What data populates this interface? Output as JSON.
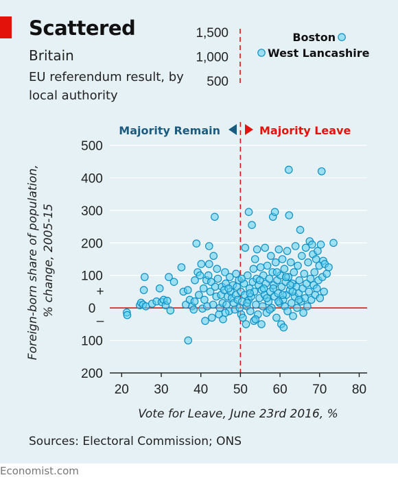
{
  "header": {
    "title": "Scattered",
    "subtitle": "Britain",
    "description": "EU referendum result, by local authority"
  },
  "footer": {
    "sources": "Sources: Electoral Commission; ONS",
    "brand": "Economist.com"
  },
  "colors": {
    "accent": "#e3120b",
    "remain": "#1c5b80",
    "leave": "#e3120b",
    "point_fill": "#5fcfee",
    "point_stroke": "#0e8fc4",
    "background": "#e6f1f6"
  },
  "chart_data": {
    "type": "scatter",
    "xlabel": "Vote for Leave, June 23rd 2016, %",
    "ylabel": "Foreign-born share of population, % change, 2005-15",
    "xlim": [
      17,
      82
    ],
    "ylim": [
      -200,
      500
    ],
    "x_ticks": [
      20,
      30,
      40,
      50,
      60,
      70,
      80
    ],
    "y_ticks": [
      {
        "value": 500,
        "label": "500"
      },
      {
        "value": 400,
        "label": "400"
      },
      {
        "value": 300,
        "label": "300"
      },
      {
        "value": 200,
        "label": "200"
      },
      {
        "value": 100,
        "label": "100"
      },
      {
        "value": 0,
        "label": "0"
      },
      {
        "value": -100,
        "label": "100"
      },
      {
        "value": -200,
        "label": "200"
      }
    ],
    "plus_sign": "+",
    "minus_sign": "–",
    "reference_line_x": 50,
    "remain_label": "Majority Remain",
    "leave_label": "Majority Leave",
    "inset": {
      "y_ticks": [
        {
          "value": 1500,
          "label": "1,500"
        },
        {
          "value": 1000,
          "label": "1,000"
        },
        {
          "value": 500,
          "label": "500"
        }
      ],
      "points": [
        {
          "name": "Boston",
          "x": 75.6,
          "y": 1412
        },
        {
          "name": "West Lancashire",
          "x": 55.3,
          "y": 1092
        }
      ]
    },
    "points": [
      [
        21.3,
        -14
      ],
      [
        21.4,
        -22
      ],
      [
        24.6,
        8
      ],
      [
        24.9,
        16
      ],
      [
        25.4,
        10
      ],
      [
        25.6,
        55
      ],
      [
        25.8,
        95
      ],
      [
        26.1,
        5
      ],
      [
        27.7,
        13
      ],
      [
        28.8,
        20
      ],
      [
        29.6,
        60
      ],
      [
        30.1,
        18
      ],
      [
        30.6,
        25
      ],
      [
        31.1,
        8
      ],
      [
        31.5,
        22
      ],
      [
        31.9,
        95
      ],
      [
        32.3,
        -8
      ],
      [
        33.2,
        80
      ],
      [
        35.1,
        125
      ],
      [
        35.6,
        50
      ],
      [
        36.2,
        10
      ],
      [
        36.7,
        55
      ],
      [
        36.8,
        -100
      ],
      [
        37.2,
        25
      ],
      [
        37.8,
        5
      ],
      [
        38.2,
        -5
      ],
      [
        38.4,
        20
      ],
      [
        38.5,
        85
      ],
      [
        38.9,
        198
      ],
      [
        39.2,
        110
      ],
      [
        39.5,
        40
      ],
      [
        39.8,
        100
      ],
      [
        40.1,
        135
      ],
      [
        40.4,
        -2
      ],
      [
        40.7,
        60
      ],
      [
        40.9,
        25
      ],
      [
        41.1,
        -40
      ],
      [
        41.4,
        85
      ],
      [
        41.6,
        5
      ],
      [
        41.9,
        100
      ],
      [
        42.1,
        135
      ],
      [
        42.1,
        190
      ],
      [
        42.4,
        50
      ],
      [
        42.6,
        80
      ],
      [
        42.8,
        -30
      ],
      [
        43.1,
        10
      ],
      [
        43.2,
        160
      ],
      [
        43.5,
        280
      ],
      [
        43.6,
        65
      ],
      [
        43.9,
        35
      ],
      [
        44.1,
        120
      ],
      [
        44.3,
        90
      ],
      [
        44.6,
        -20
      ],
      [
        44.8,
        0
      ],
      [
        45.1,
        40
      ],
      [
        45.3,
        65
      ],
      [
        45.5,
        15
      ],
      [
        45.6,
        -35
      ],
      [
        45.9,
        55
      ],
      [
        46.1,
        110
      ],
      [
        46.3,
        75
      ],
      [
        46.5,
        10
      ],
      [
        46.8,
        35
      ],
      [
        47.1,
        -10
      ],
      [
        47.3,
        95
      ],
      [
        47.5,
        50
      ],
      [
        47.8,
        30
      ],
      [
        48.1,
        70
      ],
      [
        48.3,
        15
      ],
      [
        48.6,
        -5
      ],
      [
        48.8,
        40
      ],
      [
        49.1,
        65
      ],
      [
        49.3,
        25
      ],
      [
        49.6,
        85
      ],
      [
        49.8,
        0
      ],
      [
        50.1,
        50
      ],
      [
        50.2,
        -20
      ],
      [
        50.4,
        20
      ],
      [
        50.6,
        -30
      ],
      [
        50.9,
        75
      ],
      [
        51.1,
        40
      ],
      [
        51.2,
        185
      ],
      [
        51.4,
        -50
      ],
      [
        51.6,
        5
      ],
      [
        51.8,
        100
      ],
      [
        52.1,
        25
      ],
      [
        52.1,
        295
      ],
      [
        52.3,
        60
      ],
      [
        52.5,
        -10
      ],
      [
        52.7,
        35
      ],
      [
        52.9,
        255
      ],
      [
        53.1,
        80
      ],
      [
        53.3,
        120
      ],
      [
        53.4,
        -40
      ],
      [
        53.5,
        50
      ],
      [
        53.7,
        150
      ],
      [
        53.9,
        10
      ],
      [
        54.1,
        90
      ],
      [
        54.2,
        180
      ],
      [
        54.4,
        -20
      ],
      [
        54.6,
        70
      ],
      [
        54.8,
        30
      ],
      [
        55.1,
        125
      ],
      [
        55.3,
        -50
      ],
      [
        55.4,
        55
      ],
      [
        55.6,
        5
      ],
      [
        55.8,
        100
      ],
      [
        56.1,
        40
      ],
      [
        56.2,
        185
      ],
      [
        56.4,
        75
      ],
      [
        56.6,
        -15
      ],
      [
        56.8,
        130
      ],
      [
        57.1,
        20
      ],
      [
        57.3,
        90
      ],
      [
        57.5,
        50
      ],
      [
        57.7,
        160
      ],
      [
        57.9,
        0
      ],
      [
        58.1,
        110
      ],
      [
        58.2,
        280
      ],
      [
        58.4,
        70
      ],
      [
        58.6,
        35
      ],
      [
        58.7,
        295
      ],
      [
        58.9,
        140
      ],
      [
        59.1,
        -30
      ],
      [
        59.3,
        85
      ],
      [
        59.5,
        45
      ],
      [
        59.7,
        180
      ],
      [
        59.9,
        15
      ],
      [
        60.1,
        100
      ],
      [
        60.3,
        -50
      ],
      [
        60.4,
        65
      ],
      [
        60.6,
        150
      ],
      [
        60.8,
        25
      ],
      [
        60.9,
        -60
      ],
      [
        61.1,
        120
      ],
      [
        61.2,
        5
      ],
      [
        61.4,
        80
      ],
      [
        61.6,
        40
      ],
      [
        61.8,
        175
      ],
      [
        61.9,
        -10
      ],
      [
        62.1,
        95
      ],
      [
        62.2,
        425
      ],
      [
        62.3,
        285
      ],
      [
        62.5,
        55
      ],
      [
        62.7,
        140
      ],
      [
        62.9,
        15
      ],
      [
        63.1,
        75
      ],
      [
        63.3,
        -25
      ],
      [
        63.5,
        110
      ],
      [
        63.7,
        35
      ],
      [
        63.9,
        190
      ],
      [
        64.1,
        65
      ],
      [
        64.3,
        0
      ],
      [
        64.5,
        130
      ],
      [
        64.7,
        45
      ],
      [
        64.9,
        85
      ],
      [
        65.1,
        240
      ],
      [
        65.3,
        20
      ],
      [
        65.5,
        160
      ],
      [
        65.7,
        60
      ],
      [
        65.9,
        -15
      ],
      [
        66.1,
        105
      ],
      [
        66.3,
        30
      ],
      [
        66.5,
        185
      ],
      [
        66.7,
        75
      ],
      [
        66.9,
        5
      ],
      [
        67.1,
        140
      ],
      [
        67.3,
        50
      ],
      [
        67.5,
        205
      ],
      [
        67.7,
        90
      ],
      [
        67.9,
        25
      ],
      [
        68.1,
        195
      ],
      [
        68.3,
        165
      ],
      [
        68.5,
        70
      ],
      [
        68.7,
        110
      ],
      [
        68.9,
        40
      ],
      [
        69.1,
        150
      ],
      [
        69.3,
        60
      ],
      [
        69.5,
        175
      ],
      [
        69.7,
        85
      ],
      [
        69.9,
        130
      ],
      [
        70.1,
        30
      ],
      [
        70.3,
        195
      ],
      [
        70.5,
        420
      ],
      [
        70.7,
        95
      ],
      [
        70.9,
        145
      ],
      [
        71.1,
        50
      ],
      [
        71.3,
        135
      ],
      [
        71.8,
        105
      ],
      [
        72.3,
        125
      ],
      [
        73.5,
        200
      ],
      [
        47.0,
        60
      ],
      [
        46.2,
        -15
      ],
      [
        48.9,
        105
      ],
      [
        50.3,
        90
      ],
      [
        53.8,
        -35
      ],
      [
        55.9,
        60
      ],
      [
        57.4,
        -5
      ],
      [
        59.2,
        110
      ],
      [
        61.5,
        95
      ],
      [
        63.2,
        50
      ],
      [
        64.8,
        25
      ],
      [
        58.3,
        60
      ],
      [
        56.7,
        30
      ],
      [
        54.9,
        85
      ],
      [
        52.4,
        45
      ],
      [
        51.7,
        15
      ],
      [
        60.7,
        40
      ],
      [
        62.6,
        70
      ],
      [
        59.6,
        20
      ]
    ]
  }
}
